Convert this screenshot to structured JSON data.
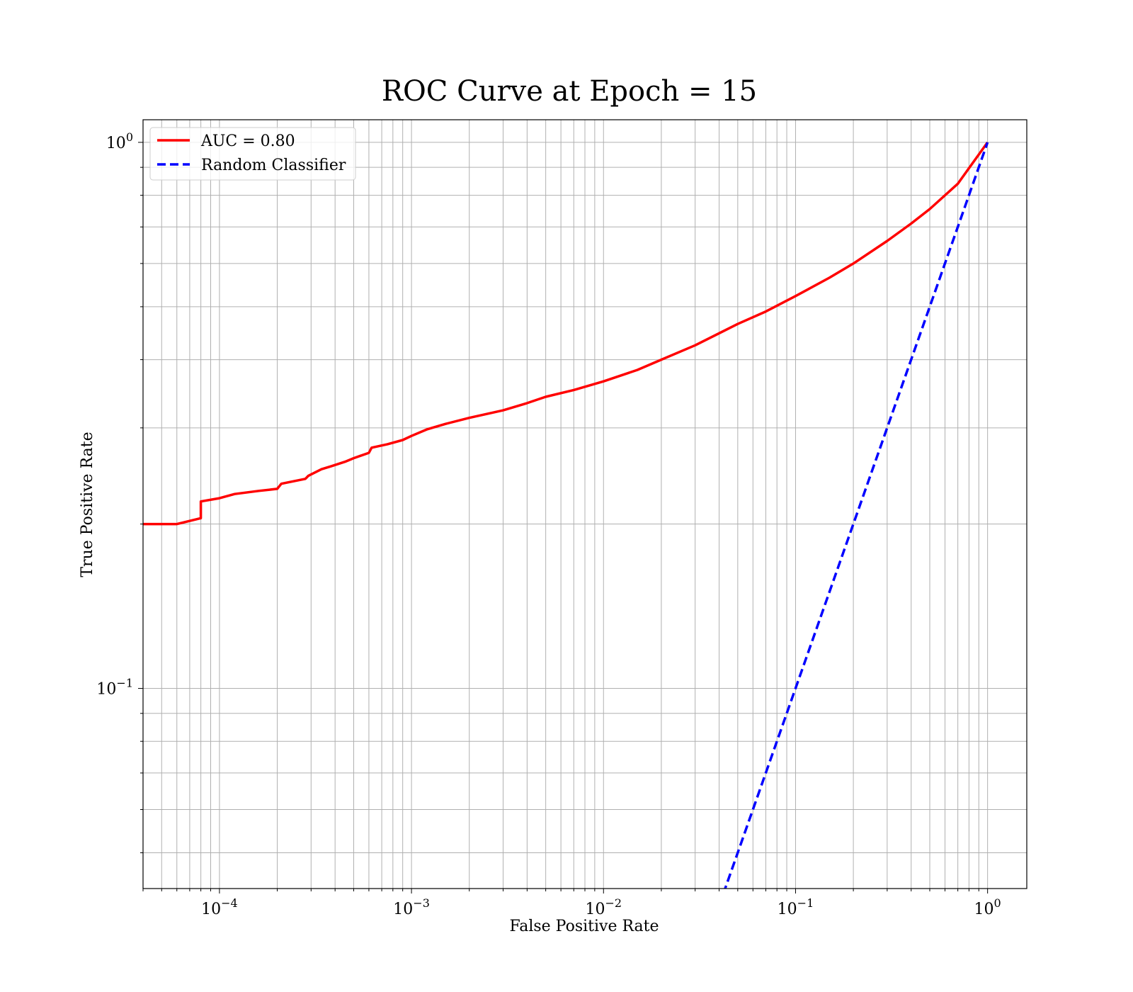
{
  "chart_data": {
    "type": "line",
    "title": "ROC Curve at Epoch = 15",
    "xlabel": "False Positive Rate",
    "ylabel": "True Positive Rate",
    "xscale": "log",
    "yscale": "log",
    "xlim": [
      4e-05,
      1.6
    ],
    "ylim": [
      0.043,
      1.1
    ],
    "grid": true,
    "legend_position": "top-left",
    "x_ticks": [
      {
        "base": "10",
        "exp": "−4",
        "value": 0.0001
      },
      {
        "base": "10",
        "exp": "−3",
        "value": 0.001
      },
      {
        "base": "10",
        "exp": "−2",
        "value": 0.01
      },
      {
        "base": "10",
        "exp": "−1",
        "value": 0.1
      },
      {
        "base": "10",
        "exp": "0",
        "value": 1
      }
    ],
    "y_ticks": [
      {
        "base": "10",
        "exp": "−1",
        "value": 0.1
      },
      {
        "base": "10",
        "exp": "0",
        "value": 1
      }
    ],
    "series": [
      {
        "name": "AUC = 0.80",
        "color": "#ff0000",
        "style": "solid",
        "x": [
          4e-05,
          6e-05,
          8e-05,
          8e-05,
          0.0001,
          0.00012,
          0.00016,
          0.0002,
          0.00021,
          0.00028,
          0.00029,
          0.00034,
          0.00038,
          0.00045,
          0.0005,
          0.0006,
          0.00062,
          0.00075,
          0.0009,
          0.001,
          0.0012,
          0.0015,
          0.002,
          0.003,
          0.004,
          0.005,
          0.007,
          0.01,
          0.015,
          0.02,
          0.03,
          0.05,
          0.07,
          0.1,
          0.15,
          0.2,
          0.3,
          0.4,
          0.5,
          0.7,
          1.0
        ],
        "y": [
          0.2,
          0.2,
          0.205,
          0.22,
          0.223,
          0.227,
          0.23,
          0.232,
          0.237,
          0.242,
          0.245,
          0.252,
          0.255,
          0.26,
          0.264,
          0.27,
          0.276,
          0.28,
          0.285,
          0.29,
          0.298,
          0.305,
          0.313,
          0.323,
          0.333,
          0.342,
          0.352,
          0.365,
          0.383,
          0.4,
          0.425,
          0.465,
          0.49,
          0.523,
          0.565,
          0.6,
          0.66,
          0.71,
          0.755,
          0.84,
          1.0
        ]
      },
      {
        "name": "Random Classifier",
        "color": "#0000ff",
        "style": "dashed",
        "x": [
          0.04,
          1.0
        ],
        "y": [
          0.04,
          1.0
        ]
      }
    ]
  }
}
